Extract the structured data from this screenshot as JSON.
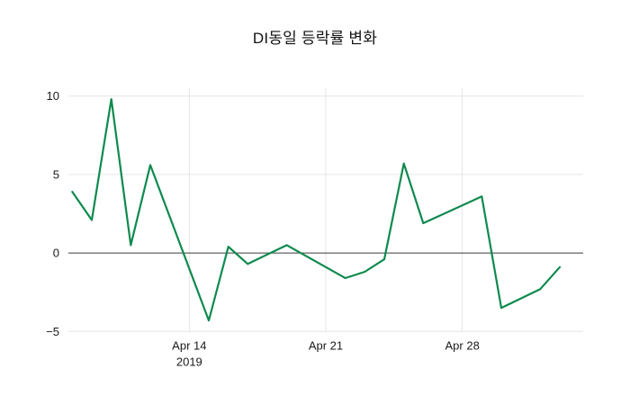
{
  "page": {
    "background": "#ffffff"
  },
  "chart_data": {
    "type": "line",
    "title": "DI동일 등락률 변화",
    "xlabel": "",
    "ylabel": "",
    "line_color": "#0e8a4e",
    "grid_color": "#e6e6e6",
    "zero_line_color": "#3a3a3a",
    "text_color": "#1a1a1a",
    "legend": "none",
    "grid": "on",
    "xlim": [
      -0.2,
      26.2
    ],
    "ylim": [
      -5.5,
      10.5
    ],
    "x_unit": "days relative to first plotted point",
    "points": [
      [
        0,
        3.9
      ],
      [
        1,
        2.1
      ],
      [
        2,
        9.8
      ],
      [
        3,
        0.5
      ],
      [
        4,
        5.6
      ],
      [
        7,
        -4.3
      ],
      [
        8,
        0.4
      ],
      [
        9,
        -0.7
      ],
      [
        10,
        -0.1
      ],
      [
        11,
        0.5
      ],
      [
        14,
        -1.6
      ],
      [
        15,
        -1.2
      ],
      [
        16,
        -0.4
      ],
      [
        17,
        5.7
      ],
      [
        18,
        1.9
      ],
      [
        21,
        3.6
      ],
      [
        22,
        -3.5
      ],
      [
        24,
        -2.3
      ],
      [
        25,
        -0.9
      ]
    ],
    "yticks": [
      {
        "v": 10,
        "label": "10"
      },
      {
        "v": 5,
        "label": "5"
      },
      {
        "v": 0,
        "label": "0"
      },
      {
        "v": -5,
        "label": "−5"
      }
    ],
    "xticks": [
      {
        "x": 6,
        "label": "Apr 14",
        "sublabel": "2019"
      },
      {
        "x": 13,
        "label": "Apr 21",
        "sublabel": ""
      },
      {
        "x": 20,
        "label": "Apr 28",
        "sublabel": ""
      }
    ]
  }
}
